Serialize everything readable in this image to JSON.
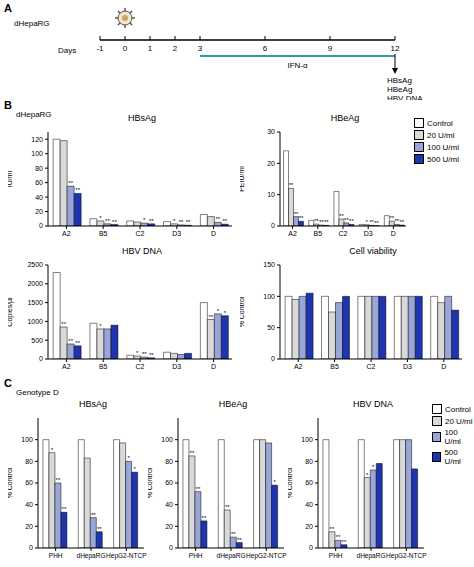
{
  "timeline": {
    "label": "A",
    "cell": "dHepaRG",
    "days_label": "Days",
    "days": [
      -1,
      0,
      1,
      2,
      3,
      6,
      9,
      12
    ],
    "infection_day": 0,
    "treatment": "IFN-α",
    "treatment_days": [
      3,
      12
    ],
    "readout_day": 12,
    "readouts": [
      "HBsAg",
      "HBeAg",
      "HBV DNA"
    ]
  },
  "panels": [
    {
      "label": "B",
      "title": "dHepaRG"
    },
    {
      "label": "C",
      "title": "Genotype D"
    }
  ],
  "chart_data": [
    {
      "type": "bar",
      "panel": "B",
      "title": "HBsAg",
      "y_label": "IU/ml",
      "categories": [
        "A2",
        "B5",
        "C2",
        "D3",
        "D"
      ],
      "ylim": [
        0,
        130
      ],
      "yticks": [
        0,
        20,
        40,
        60,
        80,
        100,
        120
      ],
      "series": [
        {
          "name": "Control",
          "color": "#ffffff",
          "values": [
            120,
            10,
            7,
            6,
            16
          ]
        },
        {
          "name": "20 U/ml",
          "color": "#d9d9d9",
          "values": [
            118,
            7,
            5.5,
            3,
            13
          ],
          "annotations": [
            null,
            "*",
            null,
            "*",
            null
          ]
        },
        {
          "name": "100 U/ml",
          "color": "#9ba6d8",
          "values": [
            55,
            3,
            4,
            1.5,
            5
          ],
          "annotations": [
            "**",
            "**",
            "*",
            "**",
            "**"
          ]
        },
        {
          "name": "500 U/ml",
          "color": "#1f35b0",
          "values": [
            45,
            2,
            3,
            1,
            2.5
          ],
          "annotations": [
            "**",
            "**",
            "**",
            "**",
            "**"
          ]
        }
      ]
    },
    {
      "type": "bar",
      "panel": "B",
      "title": "HBeAg",
      "y_label": "PEIU/ml",
      "categories": [
        "A2",
        "B5",
        "C2",
        "D3",
        "D"
      ],
      "ylim": [
        0,
        30
      ],
      "yticks": [
        0,
        10,
        20,
        30
      ],
      "legend": "right",
      "series": [
        {
          "name": "Control",
          "color": "#ffffff",
          "values": [
            24,
            1.8,
            11,
            0.5,
            3.3
          ]
        },
        {
          "name": "20 U/ml",
          "color": "#d9d9d9",
          "values": [
            12,
            0.6,
            2.2,
            0.4,
            1.5
          ],
          "annotations": [
            "**",
            "**",
            "**",
            "*",
            "**"
          ]
        },
        {
          "name": "100 U/ml",
          "color": "#9ba6d8",
          "values": [
            3,
            0.3,
            1,
            0.2,
            0.5
          ],
          "annotations": [
            "**",
            "**",
            "**",
            "**",
            "**"
          ]
        },
        {
          "name": "500 U/ml",
          "color": "#1f35b0",
          "values": [
            1.5,
            0.2,
            0.5,
            0.1,
            0.3
          ],
          "annotations": [
            "**",
            "**",
            "**",
            "**",
            "**"
          ]
        }
      ]
    },
    {
      "type": "bar",
      "panel": "B",
      "title": "HBV DNA",
      "y_label": "Copies/µl",
      "categories": [
        "A2",
        "B5",
        "C2",
        "D3",
        "D"
      ],
      "ylim": [
        0,
        2500
      ],
      "yticks": [
        0,
        500,
        1000,
        1500,
        2000,
        2500
      ],
      "series": [
        {
          "name": "Control",
          "color": "#ffffff",
          "values": [
            2300,
            950,
            100,
            180,
            1500
          ]
        },
        {
          "name": "20 U/ml",
          "color": "#d9d9d9",
          "values": [
            850,
            800,
            80,
            150,
            1050
          ],
          "annotations": [
            "**",
            "*",
            "*",
            null,
            "**"
          ]
        },
        {
          "name": "100 U/ml",
          "color": "#9ba6d8",
          "values": [
            400,
            800,
            50,
            120,
            1200
          ],
          "annotations": [
            "**",
            null,
            "**",
            null,
            "*"
          ]
        },
        {
          "name": "500 U/ml",
          "color": "#1f35b0",
          "values": [
            350,
            900,
            30,
            150,
            1150
          ],
          "annotations": [
            "**",
            null,
            "**",
            null,
            "*"
          ]
        }
      ]
    },
    {
      "type": "bar",
      "panel": "B",
      "title": "Cell viability",
      "y_label": "% Control",
      "categories": [
        "A2",
        "B5",
        "C2",
        "D3",
        "D"
      ],
      "ylim": [
        0,
        150
      ],
      "yticks": [
        0,
        50,
        100,
        150
      ],
      "series": [
        {
          "name": "Control",
          "color": "#ffffff",
          "values": [
            100,
            100,
            100,
            100,
            100
          ]
        },
        {
          "name": "20 U/ml",
          "color": "#d9d9d9",
          "values": [
            95,
            75,
            100,
            100,
            90
          ]
        },
        {
          "name": "100 U/ml",
          "color": "#9ba6d8",
          "values": [
            100,
            90,
            100,
            100,
            100
          ]
        },
        {
          "name": "500 U/ml",
          "color": "#1f35b0",
          "values": [
            105,
            100,
            100,
            100,
            78
          ]
        }
      ]
    },
    {
      "type": "bar",
      "panel": "C",
      "title": "HBsAg",
      "y_label": "% Control",
      "categories": [
        "PHH",
        "dHepaRG",
        "HepG2-NTCP"
      ],
      "ylim": [
        0,
        120
      ],
      "yticks": [
        0,
        20,
        40,
        60,
        80,
        100
      ],
      "series": [
        {
          "name": "Control",
          "color": "#ffffff",
          "values": [
            100,
            100,
            100
          ]
        },
        {
          "name": "20 U/ml",
          "color": "#d9d9d9",
          "values": [
            88,
            83,
            97
          ],
          "annotations": [
            "*",
            null,
            null
          ]
        },
        {
          "name": "100 U/ml",
          "color": "#9ba6d8",
          "values": [
            60,
            28,
            80
          ],
          "annotations": [
            "**",
            "**",
            "*"
          ]
        },
        {
          "name": "500 U/ml",
          "color": "#1f35b0",
          "values": [
            33,
            15,
            70
          ],
          "annotations": [
            "**",
            "**",
            "*"
          ]
        }
      ]
    },
    {
      "type": "bar",
      "panel": "C",
      "title": "HBeAg",
      "y_label": "% Control",
      "categories": [
        "PHH",
        "dHepaRG",
        "HepG2-NTCP"
      ],
      "ylim": [
        0,
        120
      ],
      "yticks": [
        0,
        20,
        40,
        60,
        80,
        100
      ],
      "series": [
        {
          "name": "Control",
          "color": "#ffffff",
          "values": [
            100,
            100,
            100
          ]
        },
        {
          "name": "20 U/ml",
          "color": "#d9d9d9",
          "values": [
            85,
            35,
            100
          ],
          "annotations": [
            "**",
            "**",
            null
          ]
        },
        {
          "name": "100 U/ml",
          "color": "#9ba6d8",
          "values": [
            52,
            10,
            97
          ],
          "annotations": [
            "**",
            "**",
            null
          ]
        },
        {
          "name": "500 U/ml",
          "color": "#1f35b0",
          "values": [
            25,
            5,
            58
          ],
          "annotations": [
            "**",
            "**",
            "*"
          ]
        }
      ]
    },
    {
      "type": "bar",
      "panel": "C",
      "title": "HBV DNA",
      "y_label": "% Control",
      "categories": [
        "PHH",
        "dHepaRG",
        "HepG2-NTCP"
      ],
      "ylim": [
        0,
        120
      ],
      "yticks": [
        0,
        20,
        40,
        60,
        80,
        100
      ],
      "legend": "right",
      "series": [
        {
          "name": "Control",
          "color": "#ffffff",
          "values": [
            100,
            100,
            100
          ]
        },
        {
          "name": "20 U/ml",
          "color": "#d9d9d9",
          "values": [
            15,
            65,
            100
          ],
          "annotations": [
            "**",
            "*",
            null
          ]
        },
        {
          "name": "100 U/ml",
          "color": "#9ba6d8",
          "values": [
            7,
            72,
            100
          ],
          "annotations": [
            "**",
            "*",
            null
          ]
        },
        {
          "name": "500 U/ml",
          "color": "#1f35b0",
          "values": [
            3,
            78,
            73
          ],
          "annotations": [
            "**",
            null,
            null
          ]
        }
      ]
    }
  ]
}
